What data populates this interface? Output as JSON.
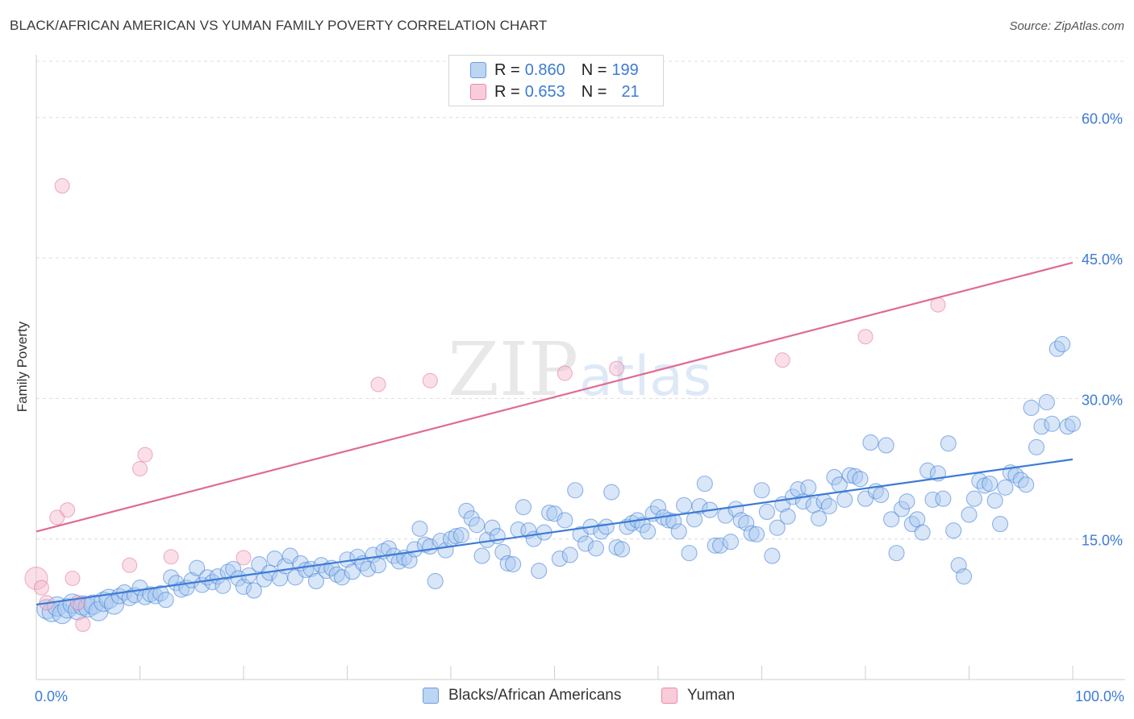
{
  "title": "BLACK/AFRICAN AMERICAN VS YUMAN FAMILY POVERTY CORRELATION CHART",
  "source": "Source: ZipAtlas.com",
  "watermark": {
    "zip": "ZIP",
    "atlas": "atlas"
  },
  "legend": {
    "blue": {
      "r_label": "R = ",
      "r_value": "0.860",
      "n_label": "N = ",
      "n_value": "199"
    },
    "pink": {
      "r_label": "R = ",
      "r_value": "0.653",
      "n_label": "N = ",
      "n_value": "21"
    }
  },
  "colors": {
    "blue": "#3d7bd6",
    "blue_fill": "#a9c8ef",
    "pink": "#e06b91",
    "pink_fill": "#f5b9cb",
    "grid": "#dddddd",
    "axis_text": "#3d7bd6"
  },
  "chart_data": {
    "type": "scatter",
    "title": "BLACK/AFRICAN AMERICAN VS YUMAN FAMILY POVERTY CORRELATION CHART",
    "xlabel": "",
    "ylabel": "Family Poverty",
    "xlim": [
      0,
      100
    ],
    "ylim": [
      0,
      66
    ],
    "x_tick_labels": [
      "0.0%",
      "100.0%"
    ],
    "y_ticks": [
      15,
      30,
      45,
      60
    ],
    "y_tick_labels": [
      "15.0%",
      "30.0%",
      "45.0%",
      "60.0%"
    ],
    "grid": "horizontal dashed",
    "legend_position": "top-center",
    "series": [
      {
        "name": "Blacks/African Americans",
        "color": "#3d7bd6",
        "trend": {
          "x": [
            0,
            100
          ],
          "y": [
            8.0,
            23.5
          ]
        },
        "points": [
          [
            1,
            7.5
          ],
          [
            1.5,
            7.2
          ],
          [
            2,
            7.8
          ],
          [
            2.5,
            7.0
          ],
          [
            3,
            7.6
          ],
          [
            3.5,
            8.1
          ],
          [
            4,
            7.4
          ],
          [
            4.5,
            7.9
          ],
          [
            5,
            7.7
          ],
          [
            5.5,
            8.0
          ],
          [
            6,
            7.3
          ],
          [
            6.5,
            8.3
          ],
          [
            7,
            8.6
          ],
          [
            7.5,
            8.0
          ],
          [
            8,
            8.9
          ],
          [
            8.5,
            9.3
          ],
          [
            9,
            8.7
          ],
          [
            9.5,
            9.0
          ],
          [
            10,
            9.8
          ],
          [
            10.5,
            8.8
          ],
          [
            11,
            9.1
          ],
          [
            11.5,
            8.9
          ],
          [
            12,
            9.2
          ],
          [
            12.5,
            8.5
          ],
          [
            13,
            10.9
          ],
          [
            13.5,
            10.3
          ],
          [
            14,
            9.6
          ],
          [
            14.5,
            9.8
          ],
          [
            15,
            10.6
          ],
          [
            15.5,
            11.9
          ],
          [
            16,
            10.1
          ],
          [
            16.5,
            10.9
          ],
          [
            17,
            10.4
          ],
          [
            17.5,
            11.0
          ],
          [
            18,
            10.0
          ],
          [
            18.5,
            11.5
          ],
          [
            19,
            11.8
          ],
          [
            19.5,
            10.8
          ],
          [
            20,
            9.9
          ],
          [
            20.5,
            11.1
          ],
          [
            21,
            9.5
          ],
          [
            21.5,
            12.3
          ],
          [
            22,
            10.7
          ],
          [
            22.5,
            11.4
          ],
          [
            23,
            12.9
          ],
          [
            23.5,
            10.8
          ],
          [
            24,
            12.1
          ],
          [
            24.5,
            13.2
          ],
          [
            25,
            10.9
          ],
          [
            25.5,
            12.4
          ],
          [
            26,
            11.7
          ],
          [
            26.5,
            11.8
          ],
          [
            27,
            10.5
          ],
          [
            27.5,
            12.2
          ],
          [
            28,
            11.6
          ],
          [
            28.5,
            11.9
          ],
          [
            29,
            11.2
          ],
          [
            29.5,
            10.9
          ],
          [
            30,
            12.8
          ],
          [
            30.5,
            11.5
          ],
          [
            31,
            13.1
          ],
          [
            31.5,
            12.4
          ],
          [
            32,
            11.8
          ],
          [
            32.5,
            13.3
          ],
          [
            33,
            12.2
          ],
          [
            33.5,
            13.7
          ],
          [
            34,
            14.0
          ],
          [
            34.5,
            13.2
          ],
          [
            35,
            12.6
          ],
          [
            35.5,
            13.0
          ],
          [
            36,
            12.7
          ],
          [
            36.5,
            13.9
          ],
          [
            37,
            16.1
          ],
          [
            37.5,
            14.4
          ],
          [
            38,
            14.2
          ],
          [
            38.5,
            10.5
          ],
          [
            39,
            14.8
          ],
          [
            39.5,
            13.8
          ],
          [
            40,
            15.0
          ],
          [
            40.5,
            15.3
          ],
          [
            41,
            15.4
          ],
          [
            41.5,
            18.0
          ],
          [
            42,
            17.2
          ],
          [
            42.5,
            16.5
          ],
          [
            43,
            13.2
          ],
          [
            43.5,
            14.9
          ],
          [
            44,
            16.2
          ],
          [
            44.5,
            15.3
          ],
          [
            45,
            13.6
          ],
          [
            45.5,
            12.4
          ],
          [
            46,
            12.3
          ],
          [
            46.5,
            16.0
          ],
          [
            47,
            18.4
          ],
          [
            47.5,
            15.9
          ],
          [
            48,
            15.0
          ],
          [
            48.5,
            11.6
          ],
          [
            49,
            15.7
          ],
          [
            49.5,
            17.8
          ],
          [
            50,
            17.7
          ],
          [
            50.5,
            12.9
          ],
          [
            51,
            17.0
          ],
          [
            51.5,
            13.3
          ],
          [
            52,
            20.2
          ],
          [
            52.5,
            15.5
          ],
          [
            53,
            14.5
          ],
          [
            53.5,
            16.3
          ],
          [
            54,
            14.0
          ],
          [
            54.5,
            15.8
          ],
          [
            55,
            16.3
          ],
          [
            55.5,
            20.0
          ],
          [
            56,
            14.1
          ],
          [
            56.5,
            13.9
          ],
          [
            57,
            16.3
          ],
          [
            57.5,
            16.7
          ],
          [
            58,
            17.0
          ],
          [
            58.5,
            16.5
          ],
          [
            59,
            15.8
          ],
          [
            59.5,
            17.7
          ],
          [
            60,
            18.4
          ],
          [
            60.5,
            17.3
          ],
          [
            61,
            17.0
          ],
          [
            61.5,
            16.9
          ],
          [
            62,
            15.8
          ],
          [
            62.5,
            18.6
          ],
          [
            63,
            13.5
          ],
          [
            63.5,
            17.1
          ],
          [
            64,
            18.5
          ],
          [
            64.5,
            20.9
          ],
          [
            65,
            18.1
          ],
          [
            65.5,
            14.3
          ],
          [
            66,
            14.3
          ],
          [
            66.5,
            17.5
          ],
          [
            67,
            14.7
          ],
          [
            67.5,
            18.2
          ],
          [
            68,
            17.0
          ],
          [
            68.5,
            16.7
          ],
          [
            69,
            15.6
          ],
          [
            69.5,
            15.5
          ],
          [
            70,
            20.2
          ],
          [
            70.5,
            17.9
          ],
          [
            71,
            13.2
          ],
          [
            71.5,
            16.2
          ],
          [
            72,
            18.7
          ],
          [
            72.5,
            17.4
          ],
          [
            73,
            19.5
          ],
          [
            73.5,
            20.3
          ],
          [
            74,
            19.0
          ],
          [
            74.5,
            20.5
          ],
          [
            75,
            18.6
          ],
          [
            75.5,
            17.2
          ],
          [
            76,
            19.0
          ],
          [
            76.5,
            18.5
          ],
          [
            77,
            21.6
          ],
          [
            77.5,
            20.8
          ],
          [
            78,
            19.2
          ],
          [
            78.5,
            21.8
          ],
          [
            79,
            21.7
          ],
          [
            79.5,
            21.4
          ],
          [
            80,
            19.3
          ],
          [
            80.5,
            25.3
          ],
          [
            81,
            20.1
          ],
          [
            81.5,
            19.7
          ],
          [
            82,
            25.0
          ],
          [
            82.5,
            17.1
          ],
          [
            83,
            13.5
          ],
          [
            83.5,
            18.2
          ],
          [
            84,
            19.0
          ],
          [
            84.5,
            16.6
          ],
          [
            85,
            17.1
          ],
          [
            85.5,
            15.7
          ],
          [
            86,
            22.3
          ],
          [
            86.5,
            19.2
          ],
          [
            87,
            22.0
          ],
          [
            87.5,
            19.3
          ],
          [
            88,
            25.2
          ],
          [
            88.5,
            15.9
          ],
          [
            89,
            12.2
          ],
          [
            89.5,
            11.0
          ],
          [
            90,
            17.6
          ],
          [
            90.5,
            19.3
          ],
          [
            91,
            21.2
          ],
          [
            91.5,
            20.7
          ],
          [
            92,
            20.9
          ],
          [
            92.5,
            19.1
          ],
          [
            93,
            16.6
          ],
          [
            93.5,
            20.5
          ],
          [
            94,
            22.1
          ],
          [
            94.5,
            21.8
          ],
          [
            95,
            21.3
          ],
          [
            95.5,
            20.8
          ],
          [
            96,
            29.0
          ],
          [
            96.5,
            24.8
          ],
          [
            97,
            27.0
          ],
          [
            97.5,
            29.6
          ],
          [
            98,
            27.3
          ],
          [
            98.5,
            35.3
          ],
          [
            99,
            35.8
          ],
          [
            99.5,
            27.0
          ],
          [
            100,
            27.3
          ]
        ]
      },
      {
        "name": "Yuman",
        "color": "#e06b91",
        "trend": {
          "x": [
            0,
            100
          ],
          "y": [
            15.8,
            44.5
          ]
        },
        "points": [
          [
            0,
            10.8
          ],
          [
            0.5,
            9.8
          ],
          [
            1,
            8.2
          ],
          [
            2,
            17.3
          ],
          [
            2.5,
            52.7
          ],
          [
            3,
            18.1
          ],
          [
            3.5,
            10.8
          ],
          [
            4,
            8.2
          ],
          [
            4.5,
            5.9
          ],
          [
            9,
            12.2
          ],
          [
            10,
            22.5
          ],
          [
            10.5,
            24.0
          ],
          [
            13,
            13.1
          ],
          [
            20,
            13.0
          ],
          [
            33,
            31.5
          ],
          [
            38,
            31.9
          ],
          [
            51,
            32.7
          ],
          [
            56,
            33.2
          ],
          [
            72,
            34.1
          ],
          [
            80,
            36.6
          ],
          [
            87,
            40.0
          ]
        ]
      }
    ]
  }
}
